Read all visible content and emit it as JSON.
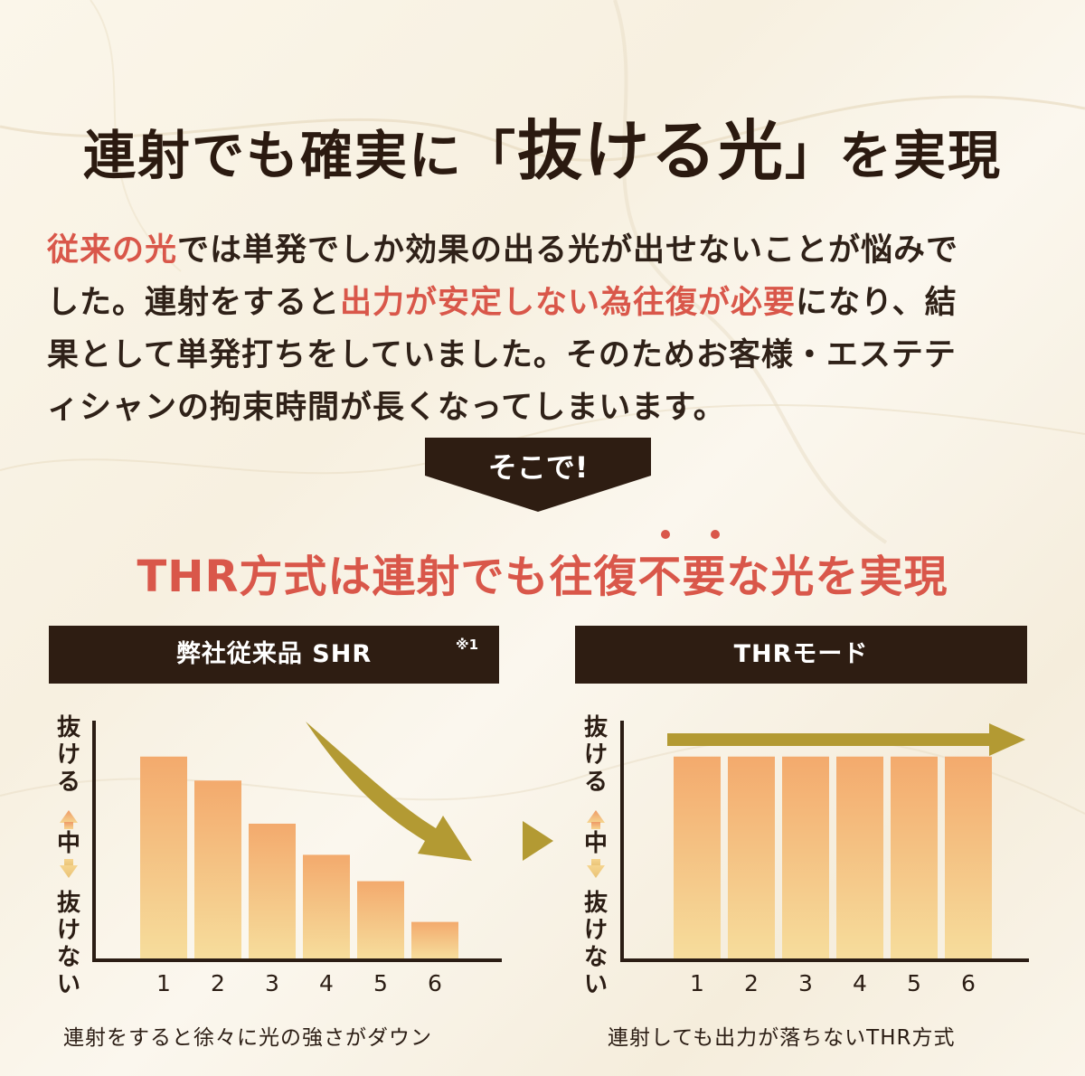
{
  "heading": {
    "part1": "連射でも確実に「",
    "emphasis": "抜ける光",
    "part2": "」を実現"
  },
  "paragraph": {
    "l1_hl": "従来の光",
    "l1_rest": "では単発でしか効果の出る光が出せないことが悩みで",
    "l2_a": "した。連射をすると",
    "l2_hl": "出力が安定しない為往復が必要",
    "l2_b": "になり、結",
    "l3": "果として単発打ちをしていました。そのためお客様・エステテ",
    "l4": "ィシャンの拘束時間が長くなってしまいます。"
  },
  "callout": {
    "label": "そこで!"
  },
  "subtitle": "THR方式は連射でも往復不要な光を実現",
  "colors": {
    "accent": "#d9574a",
    "dark": "#2e1d12",
    "gold": "#b39a33",
    "bar_top": "#f3aa6d",
    "bar_bottom": "#f6dd9c"
  },
  "axis_labels": {
    "top_a": "抜",
    "top_b": "け",
    "top_c": "る",
    "mid": "中",
    "bottom_a": "抜",
    "bottom_b": "け",
    "bottom_c": "な",
    "bottom_d": "い"
  },
  "chart_data": [
    {
      "type": "bar",
      "title": "弊社従来品 SHR",
      "note": "※1",
      "categories": [
        "1",
        "2",
        "3",
        "4",
        "5",
        "6"
      ],
      "values": [
        85,
        75,
        57,
        44,
        33,
        16
      ],
      "ylim": [
        0,
        100
      ],
      "caption": "連射をすると徐々に光の強さがダウン",
      "trend_arrow": "down"
    },
    {
      "type": "bar",
      "title": "THRモード",
      "categories": [
        "1",
        "2",
        "3",
        "4",
        "5",
        "6"
      ],
      "values": [
        85,
        85,
        85,
        85,
        85,
        85
      ],
      "ylim": [
        0,
        100
      ],
      "caption": "連射しても出力が落ちないTHR方式",
      "trend_arrow": "flat"
    }
  ]
}
